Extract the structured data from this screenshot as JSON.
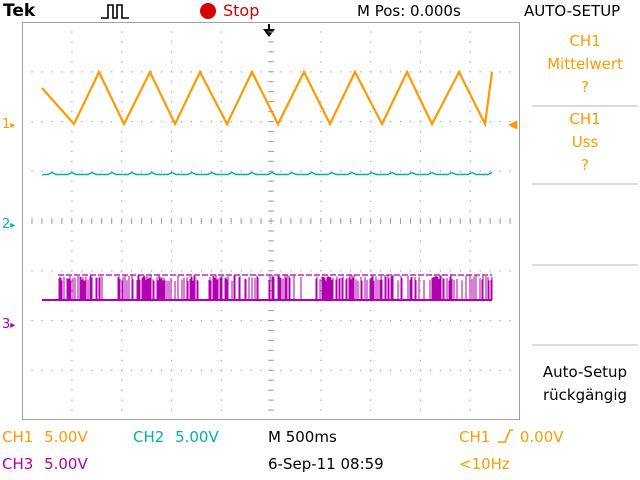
{
  "header": {
    "brand": "Tek",
    "run_state": "Stop",
    "horizontal_position": "M Pos: 0.000s",
    "menu_title": "AUTO-SETUP"
  },
  "colors": {
    "ch1": "#ff9900",
    "ch2": "#00b0b0",
    "ch3": "#b000b0",
    "stop": "#d40000",
    "graticule": "#a0a0a0"
  },
  "markers": {
    "ch1": "1",
    "ch2": "2",
    "ch3": "3"
  },
  "menu": {
    "items": [
      {
        "line1": "CH1",
        "line2": "Mittelwert",
        "line3": "?"
      },
      {
        "line1": "CH1",
        "line2": "Uss",
        "line3": "?"
      },
      {
        "line1": "Auto-Setup",
        "line2": "rückgängig",
        "line3": ""
      }
    ]
  },
  "readouts": {
    "ch1_label": "CH1",
    "ch1_scale": "5.00V",
    "ch2_label": "CH2",
    "ch2_scale": "5.00V",
    "ch3_label": "CH3",
    "ch3_scale": "5.00V",
    "timebase": "M 500ms",
    "datetime": "6-Sep-11 08:59",
    "trigger_source": "CH1",
    "trigger_level": "0.00V",
    "trigger_freq": "<10Hz"
  }
}
